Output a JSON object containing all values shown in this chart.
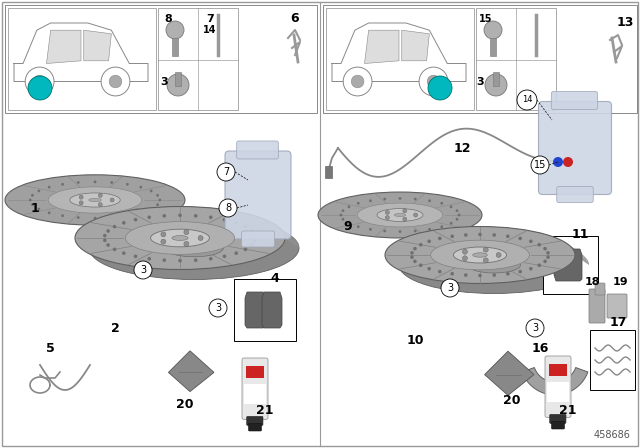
{
  "bg_color": "#ffffff",
  "part_number": "458686",
  "disk_face_color": "#A8A8A8",
  "disk_edge_color": "#707070",
  "disk_hub_color": "#C0C0C0",
  "disk_inner_color": "#B8B8B8",
  "caliper_color": "#D8DDE8",
  "teal_color": "#00B8BE",
  "label_color": "#000000",
  "wire_color": "#888888",
  "cloth_color": "#666666",
  "spray_top_color": "#222222",
  "spray_body_color": "#E0E0E0",
  "spray_label_color": "#CC2222",
  "pad_color": "#555555",
  "car_outline_color": "#aaaaaa"
}
